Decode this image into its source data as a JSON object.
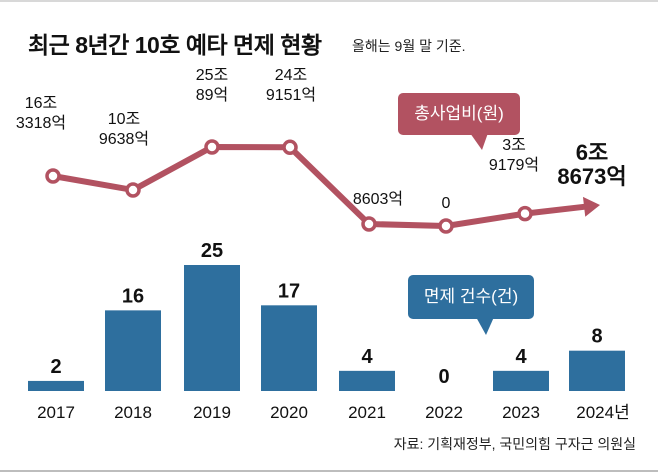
{
  "header": {
    "title": "최근 8년간 10호 예타 면제 현황",
    "subtitle": "올해는 9월 말 기준."
  },
  "callouts": {
    "cost": "총사업비(원)",
    "count": "면제 건수(건)"
  },
  "source": "자료: 기획재정부, 국민의힘 구자근 의원실",
  "colors": {
    "line": "#b25261",
    "bar": "#2e6f9e",
    "text": "#111111"
  },
  "chart_data": [
    {
      "type": "line",
      "title": "총사업비(원)",
      "categories": [
        "2017",
        "2018",
        "2019",
        "2020",
        "2021",
        "2022",
        "2023",
        "2024"
      ],
      "values_krw_eok": [
        163318,
        109638,
        250089,
        249151,
        8603,
        0,
        39179,
        68673
      ],
      "labels": [
        [
          "16조",
          "3318억"
        ],
        [
          "10조",
          "9638억"
        ],
        [
          "25조",
          "89억"
        ],
        [
          "24조",
          "9151억"
        ],
        [
          "8603억"
        ],
        [
          "0"
        ],
        [
          "3조",
          "9179억"
        ],
        [
          "6조",
          "8673억"
        ]
      ],
      "last_point_style": "arrow"
    },
    {
      "type": "bar",
      "title": "면제 건수(건)",
      "categories": [
        "2017",
        "2018",
        "2019",
        "2020",
        "2021",
        "2022",
        "2023",
        "2024년"
      ],
      "values": [
        2,
        16,
        25,
        17,
        4,
        0,
        4,
        8
      ],
      "ylim": [
        0,
        25
      ]
    }
  ]
}
